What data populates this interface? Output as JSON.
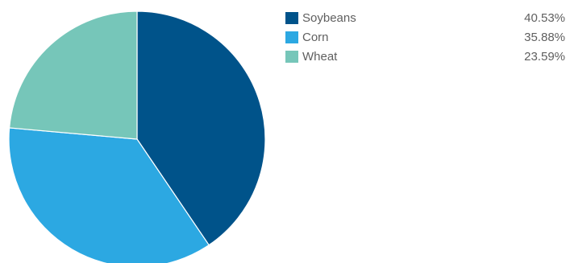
{
  "chart_data": {
    "type": "pie",
    "title": "",
    "series": [
      {
        "name": "Soybeans",
        "value": 40.53,
        "label": "40.53%",
        "color": "#00538a"
      },
      {
        "name": "Corn",
        "value": 35.88,
        "label": "35.88%",
        "color": "#2ca8e2"
      },
      {
        "name": "Wheat",
        "value": 23.59,
        "label": "23.59%",
        "color": "#76c6b9"
      }
    ],
    "start_angle": "12 o'clock",
    "direction": "clockwise",
    "legend_placement": "top-right"
  }
}
